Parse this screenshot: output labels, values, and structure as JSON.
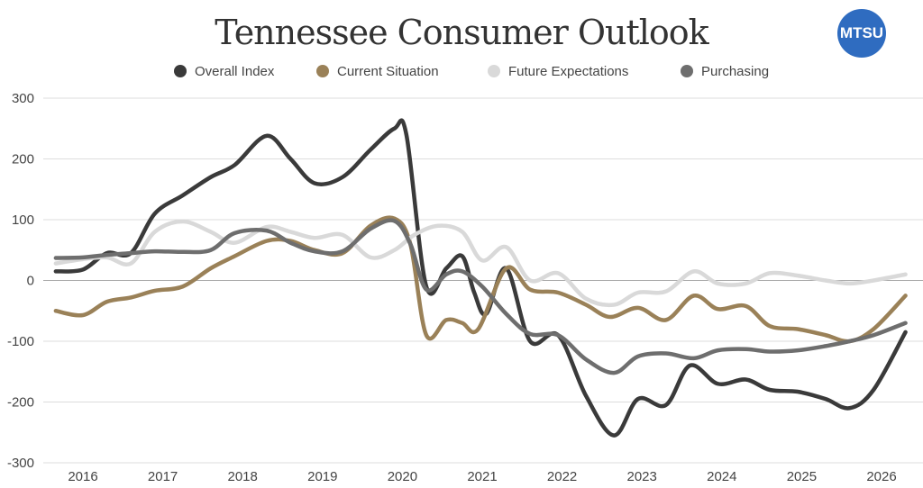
{
  "chart_data": {
    "type": "line",
    "title": "Tennessee Consumer Outlook",
    "logo_text": "MTSU",
    "xlabel": "",
    "ylabel": "",
    "ylim": [
      -300,
      300
    ],
    "yticks": [
      300,
      200,
      100,
      0,
      -100,
      -200,
      -300
    ],
    "xticks": [
      2016,
      2017,
      2018,
      2019,
      2020,
      2021,
      2022,
      2023,
      2024,
      2025,
      2026
    ],
    "xlim": [
      2015.66,
      2026.3
    ],
    "grid": true,
    "legend_position": "top",
    "series": [
      {
        "name": "Overall Index",
        "color": "#3a3a3a",
        "x": [
          2015.66,
          2016.0,
          2016.3,
          2016.6,
          2016.9,
          2017.25,
          2017.6,
          2017.9,
          2018.3,
          2018.6,
          2018.9,
          2019.25,
          2019.6,
          2019.9,
          2020.05,
          2020.3,
          2020.55,
          2020.75,
          2020.9,
          2021.05,
          2021.3,
          2021.6,
          2021.95,
          2022.3,
          2022.65,
          2022.95,
          2023.3,
          2023.6,
          2023.95,
          2024.3,
          2024.6,
          2024.95,
          2025.3,
          2025.6,
          2025.9,
          2026.3
        ],
        "y": [
          15,
          18,
          45,
          45,
          110,
          140,
          170,
          190,
          238,
          200,
          160,
          170,
          215,
          250,
          240,
          -10,
          20,
          40,
          -20,
          -55,
          20,
          -100,
          -90,
          -190,
          -255,
          -195,
          -205,
          -140,
          -170,
          -163,
          -180,
          -183,
          -195,
          -210,
          -180,
          -85
        ]
      },
      {
        "name": "Current Situation",
        "color": "#9a8158",
        "x": [
          2015.66,
          2016.0,
          2016.3,
          2016.6,
          2016.9,
          2017.25,
          2017.6,
          2017.9,
          2018.3,
          2018.6,
          2018.9,
          2019.25,
          2019.6,
          2019.9,
          2020.1,
          2020.3,
          2020.55,
          2020.75,
          2020.95,
          2021.3,
          2021.6,
          2021.95,
          2022.3,
          2022.6,
          2022.95,
          2023.3,
          2023.65,
          2023.95,
          2024.3,
          2024.6,
          2024.95,
          2025.3,
          2025.6,
          2025.9,
          2026.3
        ],
        "y": [
          -50,
          -57,
          -35,
          -28,
          -17,
          -10,
          20,
          40,
          65,
          65,
          50,
          45,
          90,
          102,
          60,
          -90,
          -65,
          -70,
          -80,
          20,
          -15,
          -20,
          -40,
          -60,
          -45,
          -65,
          -25,
          -47,
          -42,
          -75,
          -80,
          -90,
          -100,
          -80,
          -25
        ]
      },
      {
        "name": "Future Expectations",
        "color": "#d9d9d9",
        "x": [
          2015.66,
          2016.0,
          2016.3,
          2016.6,
          2016.9,
          2017.25,
          2017.6,
          2017.9,
          2018.3,
          2018.6,
          2018.9,
          2019.25,
          2019.6,
          2019.9,
          2020.15,
          2020.45,
          2020.75,
          2021.0,
          2021.3,
          2021.6,
          2021.95,
          2022.3,
          2022.65,
          2022.95,
          2023.3,
          2023.65,
          2023.95,
          2024.3,
          2024.6,
          2024.95,
          2025.3,
          2025.6,
          2025.9,
          2026.3
        ],
        "y": [
          28,
          35,
          38,
          28,
          80,
          97,
          80,
          62,
          88,
          80,
          70,
          75,
          38,
          50,
          75,
          90,
          80,
          33,
          55,
          0,
          12,
          -30,
          -40,
          -20,
          -18,
          15,
          -5,
          -5,
          12,
          8,
          0,
          -5,
          0,
          10
        ]
      },
      {
        "name": "Purchasing",
        "color": "#6e6e6e",
        "x": [
          2015.66,
          2016.0,
          2016.3,
          2016.6,
          2016.9,
          2017.25,
          2017.6,
          2017.9,
          2018.3,
          2018.6,
          2018.9,
          2019.25,
          2019.6,
          2019.9,
          2020.1,
          2020.3,
          2020.55,
          2020.75,
          2021.0,
          2021.3,
          2021.6,
          2021.95,
          2022.3,
          2022.65,
          2022.95,
          2023.3,
          2023.65,
          2023.95,
          2024.3,
          2024.6,
          2024.95,
          2025.3,
          2025.6,
          2025.9,
          2026.3
        ],
        "y": [
          37,
          38,
          42,
          45,
          48,
          47,
          50,
          78,
          82,
          62,
          48,
          48,
          85,
          98,
          60,
          -15,
          10,
          15,
          -10,
          -55,
          -88,
          -90,
          -130,
          -152,
          -125,
          -120,
          -128,
          -115,
          -113,
          -117,
          -115,
          -108,
          -100,
          -90,
          -70
        ]
      }
    ]
  }
}
